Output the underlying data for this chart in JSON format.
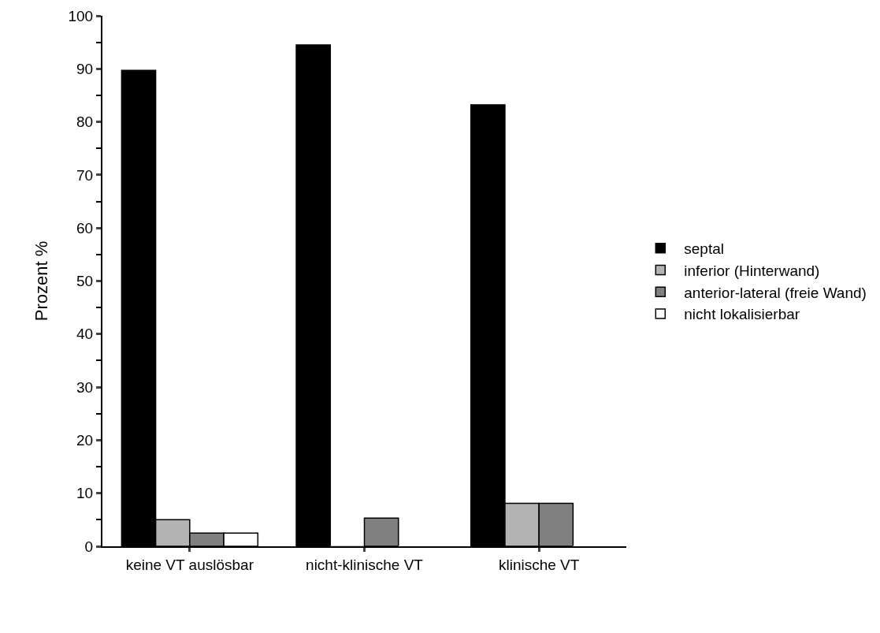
{
  "chart_data": {
    "type": "bar",
    "ylabel": "Prozent %",
    "categories": [
      "keine VT auslösbar",
      "nicht-klinische VT",
      "klinische VT"
    ],
    "series": [
      {
        "name": "septal",
        "color": "#000000",
        "values": [
          89.7,
          94.5,
          83.2
        ]
      },
      {
        "name": "inferior (Hinterwand)",
        "color": "#b3b3b3",
        "values": [
          5.0,
          0,
          8.1
        ]
      },
      {
        "name": "anterior-lateral (freie Wand)",
        "color": "#808080",
        "values": [
          2.5,
          5.3,
          8.1
        ]
      },
      {
        "name": "nicht lokalisierbar",
        "color": "#ffffff",
        "values": [
          2.5,
          0,
          0
        ]
      }
    ],
    "ylim": [
      0,
      100
    ],
    "yticks": [
      0,
      10,
      20,
      30,
      40,
      50,
      60,
      70,
      80,
      90,
      100
    ],
    "grid": false,
    "legend": "right"
  }
}
